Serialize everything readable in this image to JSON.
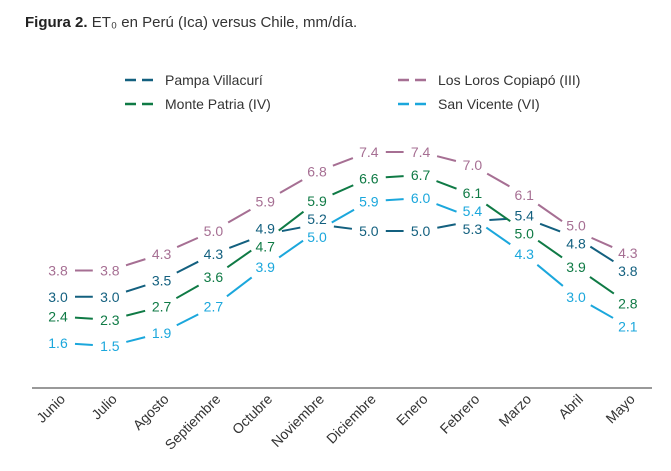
{
  "figure_label": "Figura 2.",
  "caption": "ET₀ en Perú (Ica) versus Chile, mm/día.",
  "chart_data": {
    "type": "line",
    "title": "",
    "xlabel": "",
    "ylabel": "",
    "grid": false,
    "legend_position": "top",
    "categories": [
      "Junio",
      "Julio",
      "Agosto",
      "Septiembre",
      "Octubre",
      "Noviembre",
      "Diciembre",
      "Enero",
      "Febrero",
      "Marzo",
      "Abril",
      "Mayo"
    ],
    "series": [
      {
        "name": "Pampa Villacurí",
        "color": "#13607f",
        "values": [
          3.0,
          3.0,
          3.5,
          4.3,
          4.9,
          5.2,
          5.0,
          5.0,
          5.3,
          5.4,
          4.8,
          3.8
        ]
      },
      {
        "name": "Los Loros Copiapó (III)",
        "color": "#a66f93",
        "values": [
          3.8,
          3.8,
          4.3,
          5.0,
          5.9,
          6.8,
          7.4,
          7.4,
          7.0,
          6.1,
          5.0,
          4.3
        ]
      },
      {
        "name": "Monte Patria (IV)",
        "color": "#0f7a45",
        "values": [
          2.4,
          2.3,
          2.7,
          3.6,
          4.7,
          5.9,
          6.6,
          6.7,
          6.1,
          5.0,
          3.9,
          2.8
        ]
      },
      {
        "name": "San Vicente (VI)",
        "color": "#1ba7dc",
        "values": [
          1.6,
          1.5,
          1.9,
          2.7,
          3.9,
          5.0,
          5.9,
          6.0,
          5.4,
          4.3,
          3.0,
          2.1
        ]
      }
    ]
  }
}
